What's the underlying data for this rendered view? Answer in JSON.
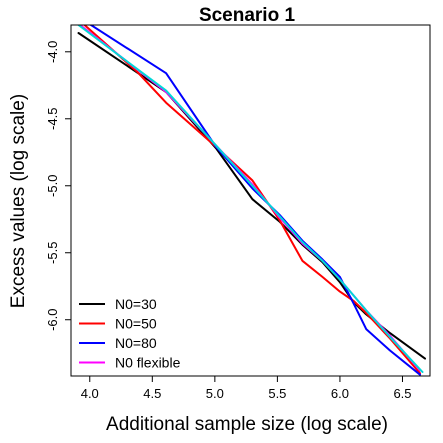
{
  "chart_data": {
    "type": "line",
    "title": "Scenario 1",
    "xlabel": "Additional sample size (log scale)",
    "ylabel": "Excess values (log scale)",
    "xlim": [
      3.85,
      6.72
    ],
    "ylim": [
      -6.42,
      -3.8
    ],
    "xticks": [
      4.0,
      4.5,
      5.0,
      5.5,
      6.0,
      6.5
    ],
    "xtick_labels": [
      "4.0",
      "4.5",
      "5.0",
      "5.5",
      "6.0",
      "6.5"
    ],
    "yticks": [
      -4.0,
      -4.5,
      -5.0,
      -5.5,
      -6.0
    ],
    "ytick_labels": [
      "-4.0",
      "-4.5",
      "-5.0",
      "-5.5",
      "-6.0"
    ],
    "grid": false,
    "legend_position": "bottom-left",
    "series": [
      {
        "name": "N0=30",
        "color": "#000000",
        "points": [
          [
            3.91,
            -3.86
          ],
          [
            4.61,
            -4.3
          ],
          [
            5.01,
            -4.72
          ],
          [
            5.3,
            -5.1
          ],
          [
            5.52,
            -5.27
          ],
          [
            5.7,
            -5.44
          ],
          [
            5.86,
            -5.57
          ],
          [
            6.0,
            -5.72
          ],
          [
            6.11,
            -5.87
          ],
          [
            6.21,
            -5.96
          ],
          [
            6.4,
            -6.1
          ],
          [
            6.68,
            -6.29
          ]
        ]
      },
      {
        "name": "N0=50",
        "color": "#ff0000",
        "points": [
          [
            3.91,
            -3.76
          ],
          [
            4.38,
            -4.15
          ],
          [
            4.61,
            -4.38
          ],
          [
            5.01,
            -4.71
          ],
          [
            5.3,
            -4.96
          ],
          [
            5.52,
            -5.26
          ],
          [
            5.7,
            -5.56
          ],
          [
            5.86,
            -5.68
          ],
          [
            6.0,
            -5.79
          ],
          [
            6.11,
            -5.86
          ],
          [
            6.21,
            -5.95
          ],
          [
            6.4,
            -6.14
          ],
          [
            6.64,
            -6.4
          ]
        ]
      },
      {
        "name": "N0=80",
        "color": "#0000ff",
        "points": [
          [
            3.91,
            -3.74
          ],
          [
            4.61,
            -4.16
          ],
          [
            5.01,
            -4.71
          ],
          [
            5.3,
            -5.02
          ],
          [
            5.52,
            -5.22
          ],
          [
            5.7,
            -5.41
          ],
          [
            5.86,
            -5.55
          ],
          [
            6.0,
            -5.68
          ],
          [
            6.11,
            -5.88
          ],
          [
            6.21,
            -6.07
          ],
          [
            6.4,
            -6.23
          ],
          [
            6.64,
            -6.41
          ]
        ]
      },
      {
        "name": "N0 flexible",
        "color": "#ff00ff",
        "points": [
          [
            3.91,
            -3.79
          ],
          [
            4.61,
            -4.3
          ],
          [
            5.01,
            -4.7
          ],
          [
            5.3,
            -4.99
          ],
          [
            5.52,
            -5.24
          ],
          [
            5.7,
            -5.43
          ],
          [
            5.86,
            -5.56
          ],
          [
            6.0,
            -5.7
          ],
          [
            6.11,
            -5.82
          ],
          [
            6.21,
            -5.93
          ],
          [
            6.4,
            -6.12
          ],
          [
            6.64,
            -6.38
          ]
        ]
      },
      {
        "name": "",
        "color": "#00d8d8",
        "points": [
          [
            3.91,
            -3.8
          ],
          [
            4.61,
            -4.29
          ],
          [
            5.01,
            -4.7
          ],
          [
            5.3,
            -5.0
          ],
          [
            5.52,
            -5.23
          ],
          [
            5.7,
            -5.42
          ],
          [
            5.86,
            -5.56
          ],
          [
            6.0,
            -5.7
          ],
          [
            6.11,
            -5.82
          ],
          [
            6.21,
            -5.93
          ],
          [
            6.4,
            -6.13
          ],
          [
            6.66,
            -6.39
          ]
        ]
      }
    ]
  }
}
